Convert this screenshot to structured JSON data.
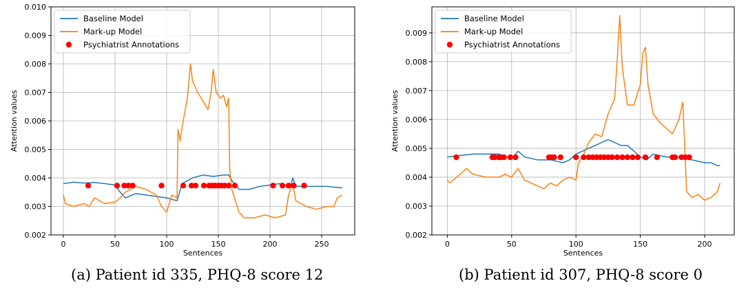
{
  "chart_data": [
    {
      "type": "line",
      "caption": "(a) Patient id 335, PHQ-8 score 12",
      "xlabel": "Sentences",
      "ylabel": "Attention values",
      "xlim": [
        -12,
        282
      ],
      "ylim": [
        0.002,
        0.01
      ],
      "xticks": [
        0,
        50,
        100,
        150,
        200,
        250
      ],
      "yticks": [
        0.002,
        0.003,
        0.004,
        0.005,
        0.006,
        0.007,
        0.008,
        0.009,
        0.01
      ],
      "ytick_labels": [
        "0.002",
        "0.003",
        "0.004",
        "0.005",
        "0.006",
        "0.007",
        "0.008",
        "0.009",
        "0.010"
      ],
      "grid": true,
      "legend_position": "top-left",
      "legend": [
        "Baseline Model",
        "Mark-up Model",
        "Psychiatrist Annotations"
      ],
      "colors": {
        "baseline": "#1f77b4",
        "markup": "#ff7f0e",
        "annotations": "#ff0000"
      },
      "series": [
        {
          "name": "Baseline Model",
          "kind": "line",
          "points": [
            [
              0,
              0.0038
            ],
            [
              10,
              0.00385
            ],
            [
              20,
              0.00382
            ],
            [
              30,
              0.00384
            ],
            [
              40,
              0.0038
            ],
            [
              50,
              0.00375
            ],
            [
              55,
              0.0035
            ],
            [
              60,
              0.0033
            ],
            [
              70,
              0.00345
            ],
            [
              80,
              0.0034
            ],
            [
              90,
              0.00335
            ],
            [
              100,
              0.0033
            ],
            [
              110,
              0.0032
            ],
            [
              115,
              0.0038
            ],
            [
              125,
              0.004
            ],
            [
              135,
              0.0041
            ],
            [
              145,
              0.00405
            ],
            [
              155,
              0.0041
            ],
            [
              160,
              0.0041
            ],
            [
              165,
              0.0038
            ],
            [
              170,
              0.0036
            ],
            [
              180,
              0.0036
            ],
            [
              190,
              0.0037
            ],
            [
              200,
              0.00375
            ],
            [
              210,
              0.0038
            ],
            [
              220,
              0.0037
            ],
            [
              222,
              0.004
            ],
            [
              225,
              0.0037
            ],
            [
              240,
              0.0037
            ],
            [
              255,
              0.0037
            ],
            [
              270,
              0.00365
            ]
          ]
        },
        {
          "name": "Mark-up Model",
          "kind": "line",
          "points": [
            [
              0,
              0.0034
            ],
            [
              2,
              0.0031
            ],
            [
              10,
              0.003
            ],
            [
              20,
              0.0031
            ],
            [
              25,
              0.003
            ],
            [
              30,
              0.0033
            ],
            [
              40,
              0.0031
            ],
            [
              50,
              0.00315
            ],
            [
              55,
              0.0033
            ],
            [
              60,
              0.0035
            ],
            [
              70,
              0.0037
            ],
            [
              80,
              0.0036
            ],
            [
              90,
              0.0034
            ],
            [
              95,
              0.003
            ],
            [
              100,
              0.0028
            ],
            [
              105,
              0.0034
            ],
            [
              110,
              0.0033
            ],
            [
              111,
              0.0057
            ],
            [
              113,
              0.0053
            ],
            [
              115,
              0.0058
            ],
            [
              118,
              0.0064
            ],
            [
              120,
              0.0068
            ],
            [
              122,
              0.0076
            ],
            [
              123,
              0.008
            ],
            [
              125,
              0.0074
            ],
            [
              130,
              0.007
            ],
            [
              135,
              0.0067
            ],
            [
              140,
              0.0064
            ],
            [
              143,
              0.007
            ],
            [
              145,
              0.0078
            ],
            [
              148,
              0.007
            ],
            [
              152,
              0.0068
            ],
            [
              155,
              0.0069
            ],
            [
              158,
              0.0065
            ],
            [
              160,
              0.0068
            ],
            [
              161,
              0.0043
            ],
            [
              163,
              0.0036
            ],
            [
              170,
              0.0028
            ],
            [
              175,
              0.0026
            ],
            [
              185,
              0.0026
            ],
            [
              195,
              0.0027
            ],
            [
              205,
              0.0026
            ],
            [
              215,
              0.0027
            ],
            [
              218,
              0.0034
            ],
            [
              222,
              0.0038
            ],
            [
              225,
              0.0032
            ],
            [
              235,
              0.003
            ],
            [
              245,
              0.0029
            ],
            [
              255,
              0.003
            ],
            [
              262,
              0.003
            ],
            [
              265,
              0.0033
            ],
            [
              270,
              0.0034
            ]
          ]
        },
        {
          "name": "Psychiatrist Annotations",
          "kind": "scatter",
          "points": [
            [
              24,
              0.00373
            ],
            [
              52,
              0.00373
            ],
            [
              59,
              0.00373
            ],
            [
              63,
              0.00373
            ],
            [
              67,
              0.00373
            ],
            [
              95,
              0.00373
            ],
            [
              116,
              0.00373
            ],
            [
              124,
              0.00373
            ],
            [
              128,
              0.00373
            ],
            [
              136,
              0.00373
            ],
            [
              141,
              0.00373
            ],
            [
              144,
              0.00373
            ],
            [
              147,
              0.00373
            ],
            [
              150,
              0.00373
            ],
            [
              153,
              0.00373
            ],
            [
              156,
              0.00373
            ],
            [
              160,
              0.00373
            ],
            [
              166,
              0.00373
            ],
            [
              203,
              0.00373
            ],
            [
              212,
              0.00373
            ],
            [
              218,
              0.00373
            ],
            [
              223,
              0.00373
            ],
            [
              233,
              0.00373
            ]
          ]
        }
      ]
    },
    {
      "type": "line",
      "caption": "(b) Patient id 307, PHQ-8 score 0",
      "xlabel": "Sentences",
      "ylabel": "Attention values",
      "xlim": [
        -12,
        223
      ],
      "ylim": [
        0.002,
        0.0099
      ],
      "xticks": [
        0,
        50,
        100,
        150,
        200
      ],
      "yticks": [
        0.002,
        0.003,
        0.004,
        0.005,
        0.006,
        0.007,
        0.008,
        0.009
      ],
      "ytick_labels": [
        "0.002",
        "0.003",
        "0.004",
        "0.005",
        "0.006",
        "0.007",
        "0.008",
        "0.009"
      ],
      "grid": true,
      "legend_position": "top-left",
      "legend": [
        "Baseline Model",
        "Mark-up Model",
        "Psychiatrist Annotations"
      ],
      "colors": {
        "baseline": "#1f77b4",
        "markup": "#ff7f0e",
        "annotations": "#ff0000"
      },
      "series": [
        {
          "name": "Baseline Model",
          "kind": "line",
          "points": [
            [
              0,
              0.0047
            ],
            [
              10,
              0.00475
            ],
            [
              20,
              0.0048
            ],
            [
              30,
              0.0048
            ],
            [
              40,
              0.0048
            ],
            [
              50,
              0.00465
            ],
            [
              55,
              0.0049
            ],
            [
              60,
              0.0047
            ],
            [
              70,
              0.0046
            ],
            [
              80,
              0.0046
            ],
            [
              90,
              0.0045
            ],
            [
              95,
              0.0046
            ],
            [
              100,
              0.0048
            ],
            [
              105,
              0.0049
            ],
            [
              110,
              0.005
            ],
            [
              120,
              0.0052
            ],
            [
              125,
              0.0053
            ],
            [
              130,
              0.0052
            ],
            [
              135,
              0.0051
            ],
            [
              140,
              0.0051
            ],
            [
              145,
              0.0049
            ],
            [
              150,
              0.0047
            ],
            [
              155,
              0.0046
            ],
            [
              160,
              0.0048
            ],
            [
              170,
              0.0047
            ],
            [
              180,
              0.0047
            ],
            [
              190,
              0.0046
            ],
            [
              200,
              0.0045
            ],
            [
              205,
              0.0045
            ],
            [
              210,
              0.0044
            ],
            [
              212,
              0.0044
            ]
          ]
        },
        {
          "name": "Mark-up Model",
          "kind": "line",
          "points": [
            [
              0,
              0.0039
            ],
            [
              2,
              0.0038
            ],
            [
              10,
              0.0041
            ],
            [
              15,
              0.0043
            ],
            [
              20,
              0.0041
            ],
            [
              30,
              0.004
            ],
            [
              40,
              0.004
            ],
            [
              45,
              0.0041
            ],
            [
              50,
              0.004
            ],
            [
              55,
              0.0043
            ],
            [
              60,
              0.0039
            ],
            [
              70,
              0.0037
            ],
            [
              75,
              0.0036
            ],
            [
              80,
              0.0038
            ],
            [
              85,
              0.0037
            ],
            [
              90,
              0.0039
            ],
            [
              95,
              0.004
            ],
            [
              100,
              0.0039
            ],
            [
              102,
              0.0045
            ],
            [
              105,
              0.0047
            ],
            [
              110,
              0.0052
            ],
            [
              115,
              0.0055
            ],
            [
              120,
              0.0054
            ],
            [
              125,
              0.0062
            ],
            [
              130,
              0.0067
            ],
            [
              132,
              0.008
            ],
            [
              134,
              0.0096
            ],
            [
              136,
              0.0078
            ],
            [
              140,
              0.0065
            ],
            [
              145,
              0.0065
            ],
            [
              150,
              0.0072
            ],
            [
              152,
              0.0083
            ],
            [
              154,
              0.0085
            ],
            [
              156,
              0.0072
            ],
            [
              160,
              0.0062
            ],
            [
              165,
              0.0059
            ],
            [
              170,
              0.0057
            ],
            [
              175,
              0.0055
            ],
            [
              180,
              0.006
            ],
            [
              183,
              0.0066
            ],
            [
              186,
              0.0035
            ],
            [
              190,
              0.0033
            ],
            [
              195,
              0.0034
            ],
            [
              200,
              0.0032
            ],
            [
              205,
              0.0033
            ],
            [
              210,
              0.0035
            ],
            [
              212,
              0.0038
            ]
          ]
        },
        {
          "name": "Psychiatrist Annotations",
          "kind": "scatter",
          "points": [
            [
              7,
              0.00469
            ],
            [
              35,
              0.00469
            ],
            [
              37,
              0.00469
            ],
            [
              40,
              0.00469
            ],
            [
              42,
              0.00469
            ],
            [
              44,
              0.00469
            ],
            [
              49,
              0.00469
            ],
            [
              53,
              0.00469
            ],
            [
              79,
              0.00469
            ],
            [
              81,
              0.00469
            ],
            [
              83,
              0.00469
            ],
            [
              88,
              0.00469
            ],
            [
              100,
              0.00469
            ],
            [
              106,
              0.00469
            ],
            [
              110,
              0.00469
            ],
            [
              113,
              0.00469
            ],
            [
              116,
              0.00469
            ],
            [
              119,
              0.00469
            ],
            [
              122,
              0.00469
            ],
            [
              125,
              0.00469
            ],
            [
              128,
              0.00469
            ],
            [
              132,
              0.00469
            ],
            [
              136,
              0.00469
            ],
            [
              140,
              0.00469
            ],
            [
              144,
              0.00469
            ],
            [
              148,
              0.00469
            ],
            [
              154,
              0.00469
            ],
            [
              163,
              0.00469
            ],
            [
              175,
              0.00469
            ],
            [
              177,
              0.00469
            ],
            [
              182,
              0.00469
            ],
            [
              185,
              0.00469
            ],
            [
              188,
              0.00469
            ]
          ]
        }
      ]
    }
  ]
}
